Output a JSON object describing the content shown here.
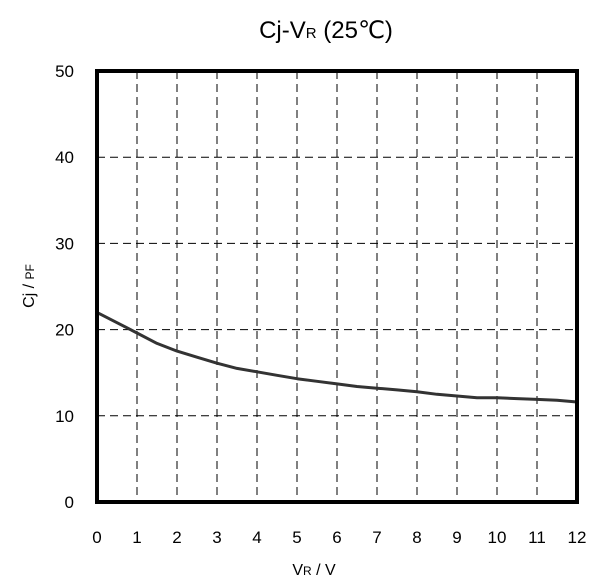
{
  "chart_data": {
    "type": "line",
    "title": {
      "prefix": "Cj-V",
      "subscript": "R",
      "suffix": " (25℃)"
    },
    "xlabel": {
      "main": "V",
      "subscript": "R",
      "suffix": " / V"
    },
    "ylabel": {
      "main": "Cj / ",
      "small": "PF"
    },
    "xlim": [
      0,
      12
    ],
    "ylim": [
      0,
      50
    ],
    "xticks": [
      "0",
      "1",
      "2",
      "3",
      "4",
      "5",
      "6",
      "7",
      "8",
      "9",
      "10",
      "11",
      "12"
    ],
    "yticks": [
      "0",
      "10",
      "20",
      "30",
      "40",
      "50"
    ],
    "grid": true,
    "grid_style": "dashed",
    "series": [
      {
        "color": "#333333",
        "x": [
          0,
          0.5,
          1,
          1.5,
          2,
          2.5,
          3,
          3.5,
          4,
          4.5,
          5,
          5.5,
          6,
          6.5,
          7,
          7.5,
          8,
          8.5,
          9,
          9.5,
          10,
          10.5,
          11,
          11.5,
          12
        ],
        "y": [
          22,
          20.8,
          19.6,
          18.4,
          17.5,
          16.8,
          16.1,
          15.5,
          15.1,
          14.7,
          14.3,
          14.0,
          13.7,
          13.4,
          13.2,
          13.0,
          12.8,
          12.5,
          12.3,
          12.1,
          12.1,
          12.0,
          11.9,
          11.8,
          11.6
        ]
      }
    ]
  }
}
